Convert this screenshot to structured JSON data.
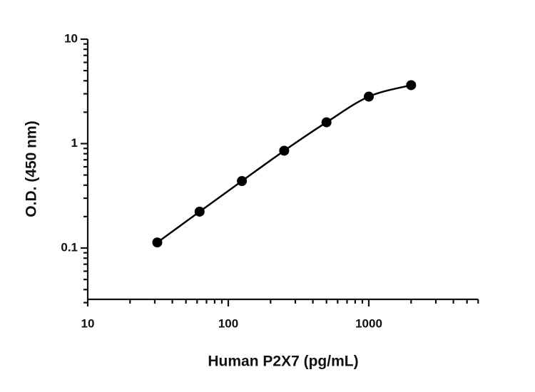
{
  "chart_data": {
    "type": "scatter",
    "x_label": "Human P2X7 (pg/mL)",
    "y_label": "O.D. (450 nm)",
    "x_log": true,
    "y_log": true,
    "x": [
      31.25,
      62.5,
      125,
      250,
      500,
      1000,
      2000
    ],
    "series": [
      {
        "color": "#000000",
        "values": [
          0.113,
          0.223,
          0.438,
          0.855,
          1.6,
          2.82,
          3.63
        ]
      }
    ],
    "fit_curve": true,
    "xlim": [
      10,
      6000
    ],
    "ylim": [
      0.03,
      10
    ],
    "xticks": [
      10,
      100,
      1000
    ],
    "yticks": [
      {
        "value": 0.1,
        "label": "0.1"
      },
      1,
      10
    ],
    "xminor_ticks": [
      20,
      30,
      40,
      50,
      60,
      70,
      80,
      90,
      200,
      300,
      400,
      500,
      600,
      700,
      800,
      900,
      2000,
      3000,
      4000,
      5000,
      6000
    ],
    "yminor_ticks": [
      0.03,
      0.04,
      0.05,
      0.06,
      0.07,
      0.08,
      0.09,
      0.2,
      0.3,
      0.4,
      0.5,
      0.6,
      0.7,
      0.8,
      0.9,
      2,
      3,
      4,
      5,
      6,
      7,
      8,
      9
    ]
  }
}
